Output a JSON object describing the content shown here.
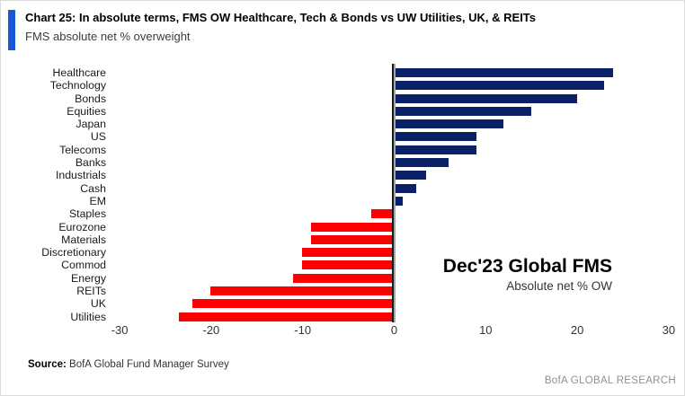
{
  "header": {
    "title": "Chart 25: In absolute terms, FMS OW Healthcare, Tech & Bonds vs UW Utilities, UK, & REITs",
    "subtitle": "FMS absolute net % overweight"
  },
  "annotation": {
    "line1": "Dec'23 Global FMS",
    "line2": "Absolute net % OW"
  },
  "footer": {
    "source_label": "Source:",
    "source_text": "BofA Global Fund Manager Survey",
    "brand": "BofA GLOBAL RESEARCH"
  },
  "colors": {
    "accent_blue": "#1659D6",
    "positive_bar": "#0A2167",
    "negative_bar": "#FF0000",
    "axis_line": "#1a1a1a",
    "axis_shadow": "#a6a6a6",
    "brand_gray": "#8e9096"
  },
  "chart_data": {
    "type": "bar",
    "orientation": "horizontal",
    "title": "Chart 25: In absolute terms, FMS OW Healthcare, Tech & Bonds vs UW Utilities, UK, & REITs",
    "subtitle": "FMS absolute net % overweight",
    "xlabel": "",
    "ylabel": "",
    "xlim": [
      -30,
      30
    ],
    "xticks": [
      -30,
      -20,
      -10,
      0,
      10,
      20,
      30
    ],
    "grid": false,
    "legend": false,
    "positive_color": "#0A2167",
    "negative_color": "#FF0000",
    "categories": [
      "Healthcare",
      "Technology",
      "Bonds",
      "Equities",
      "Japan",
      "US",
      "Telecoms",
      "Banks",
      "Industrials",
      "Cash",
      "EM",
      "Staples",
      "Eurozone",
      "Materials",
      "Discretionary",
      "Commod",
      "Energy",
      "REITs",
      "UK",
      "Utilities"
    ],
    "values": [
      24,
      23,
      20,
      15,
      12,
      9,
      9,
      6,
      3.5,
      2.5,
      1,
      -2.5,
      -9,
      -9,
      -10,
      -10,
      -11,
      -20,
      -22,
      -23.5
    ]
  }
}
